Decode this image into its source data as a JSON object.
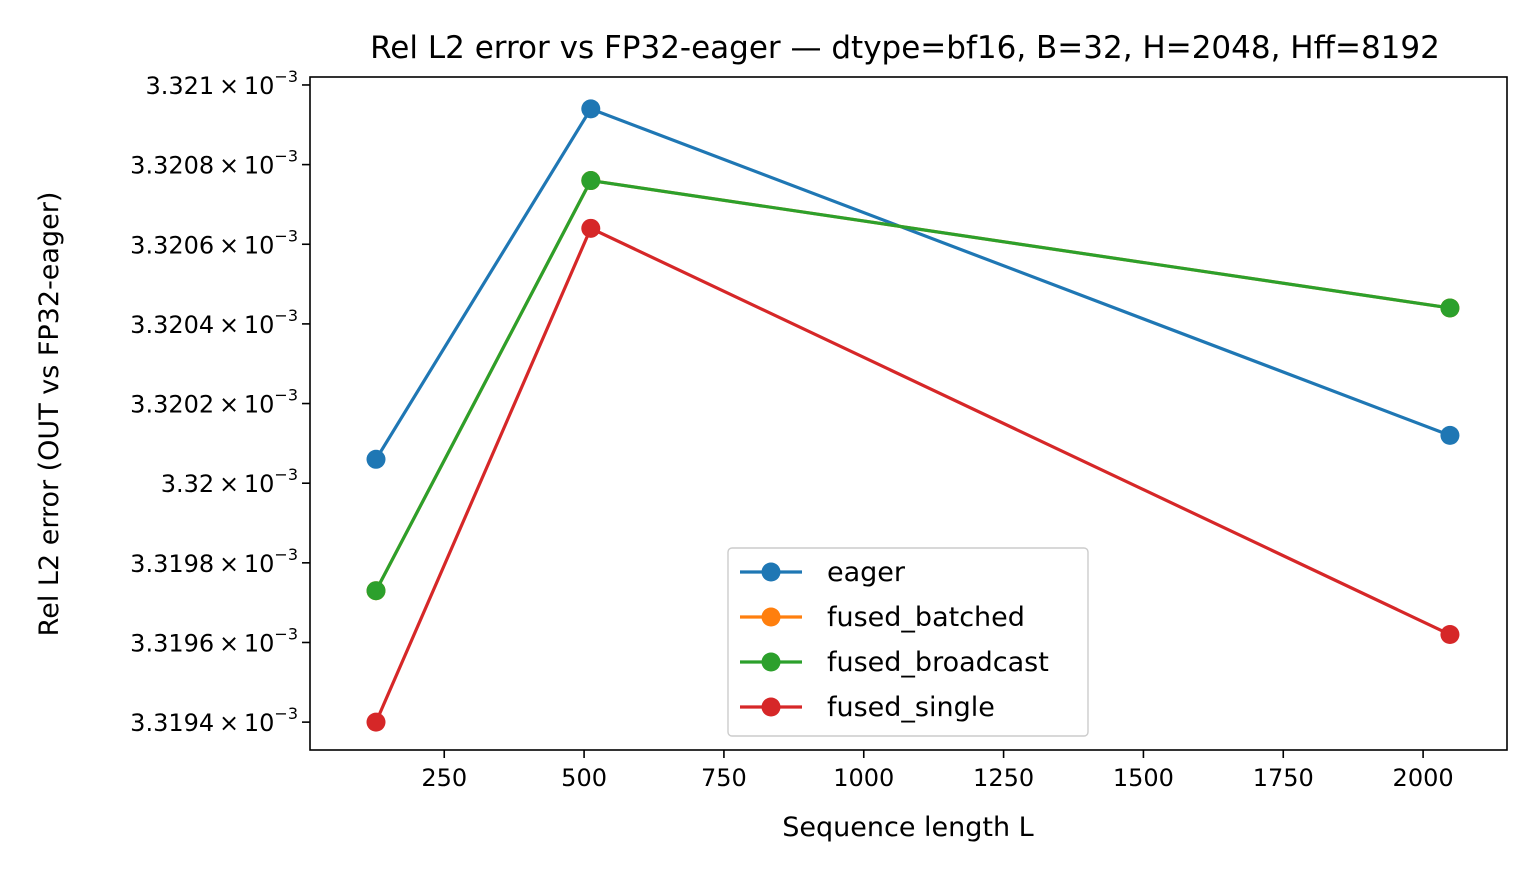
{
  "chart_data": {
    "type": "line",
    "title": "Rel L2 error vs FP32-eager — dtype=bf16, B=32, H=2048, Hff=8192",
    "xlabel": "Sequence length L",
    "ylabel": "Rel L2 error (OUT vs FP32-eager)",
    "x": [
      128,
      512,
      2048
    ],
    "xlim": [
      10,
      2150
    ],
    "ylim": [
      0.00331933,
      0.00332102
    ],
    "xticks": [
      250,
      500,
      750,
      1000,
      1250,
      1500,
      1750,
      2000
    ],
    "xtick_labels": [
      "250",
      "500",
      "750",
      "1000",
      "1250",
      "1500",
      "1750",
      "2000"
    ],
    "yticks": [
      {
        "value": 0.0033194,
        "mantissa": "3.3194",
        "times": "×",
        "base": "10",
        "exponent": "−3"
      },
      {
        "value": 0.0033196,
        "mantissa": "3.3196",
        "times": "×",
        "base": "10",
        "exponent": "−3"
      },
      {
        "value": 0.0033198,
        "mantissa": "3.3198",
        "times": "×",
        "base": "10",
        "exponent": "−3"
      },
      {
        "value": 0.00332,
        "mantissa": "3.32",
        "times": "×",
        "base": "10",
        "exponent": "−3"
      },
      {
        "value": 0.0033202,
        "mantissa": "3.3202",
        "times": "×",
        "base": "10",
        "exponent": "−3"
      },
      {
        "value": 0.0033204,
        "mantissa": "3.3204",
        "times": "×",
        "base": "10",
        "exponent": "−3"
      },
      {
        "value": 0.0033206,
        "mantissa": "3.3206",
        "times": "×",
        "base": "10",
        "exponent": "−3"
      },
      {
        "value": 0.0033208,
        "mantissa": "3.3208",
        "times": "×",
        "base": "10",
        "exponent": "−3"
      },
      {
        "value": 0.003321,
        "mantissa": "3.321",
        "times": "×",
        "base": "10",
        "exponent": "−3"
      }
    ],
    "grid": false,
    "legend_position": "lower-center",
    "series": [
      {
        "name": "eager",
        "color": "#1f77b4",
        "values": [
          0.00332006,
          0.00332094,
          0.00332012
        ]
      },
      {
        "name": "fused_batched",
        "color": "#ff7f0e",
        "values": [
          0.00331973,
          0.00332076,
          0.00332044
        ]
      },
      {
        "name": "fused_broadcast",
        "color": "#2ca02c",
        "values": [
          0.00331973,
          0.00332076,
          0.00332044
        ]
      },
      {
        "name": "fused_single",
        "color": "#d62728",
        "values": [
          0.0033194,
          0.00332064,
          0.00331962
        ]
      }
    ]
  }
}
